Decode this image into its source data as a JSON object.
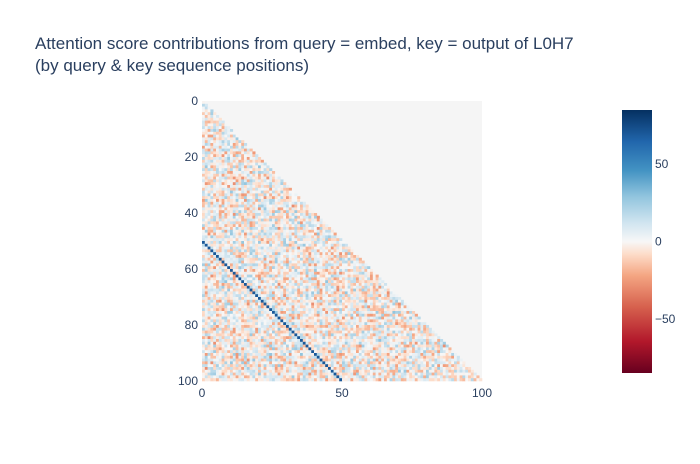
{
  "title": {
    "line1": "Attention score contributions from query = embed, key = output of L0H7",
    "line2": "(by query & key sequence positions)"
  },
  "chart_data": {
    "type": "heatmap",
    "title": "Attention score contributions from query = embed, key = output of L0H7 (by query & key sequence positions)",
    "x_ticks": [
      "0",
      "50",
      "100"
    ],
    "y_ticks": [
      "0",
      "20",
      "40",
      "60",
      "80",
      "100"
    ],
    "xlim": [
      0,
      100
    ],
    "ylim": [
      100,
      0
    ],
    "colorscale": "RdBu",
    "colorbar_ticks": [
      "50",
      "0",
      "−50"
    ],
    "colorbar_range": [
      -85,
      85
    ],
    "masked_region": "upper triangle (key position > query position), shown as light gray",
    "feature": "strong positive diagonal band where key = query − 50 for query positions 50–100",
    "background_noise_range": [
      -30,
      30
    ],
    "diagonal_value": 70,
    "grid": false,
    "colors": {
      "masked": "#f5f5f5",
      "positive_max": "#053061",
      "negative_max": "#67001f",
      "neutral": "#f7f7f7"
    }
  }
}
